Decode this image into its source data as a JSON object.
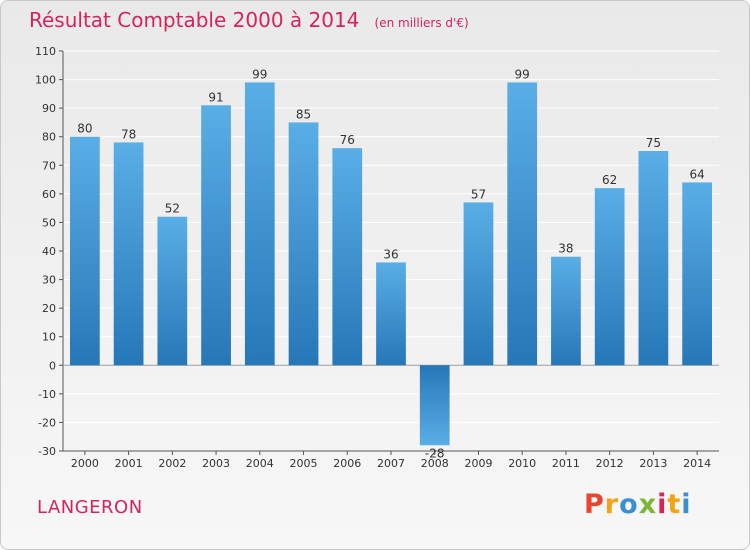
{
  "header": {
    "title": "Résultat Comptable 2000 à 2014",
    "unit": "(en milliers d'€)"
  },
  "footer": {
    "commune": "LANGERON",
    "logo_text": "Proxiti"
  },
  "colors": {
    "title": "#d6245a",
    "bar_light": "#5aaee6",
    "bar_dark": "#2677b8"
  },
  "chart_data": {
    "type": "bar",
    "title": "Résultat Comptable 2000 à 2014",
    "xlabel": "",
    "ylabel": "(en milliers d'€)",
    "categories": [
      "2000",
      "2001",
      "2002",
      "2003",
      "2004",
      "2005",
      "2006",
      "2007",
      "2008",
      "2009",
      "2010",
      "2011",
      "2012",
      "2013",
      "2014"
    ],
    "values": [
      80,
      78,
      52,
      91,
      99,
      85,
      76,
      36,
      -28,
      57,
      99,
      38,
      62,
      75,
      64
    ],
    "ylim": [
      -30,
      110
    ],
    "yticks": [
      -30,
      -20,
      -10,
      0,
      10,
      20,
      30,
      40,
      50,
      60,
      70,
      80,
      90,
      100,
      110
    ],
    "grid": true,
    "legend": "none"
  }
}
